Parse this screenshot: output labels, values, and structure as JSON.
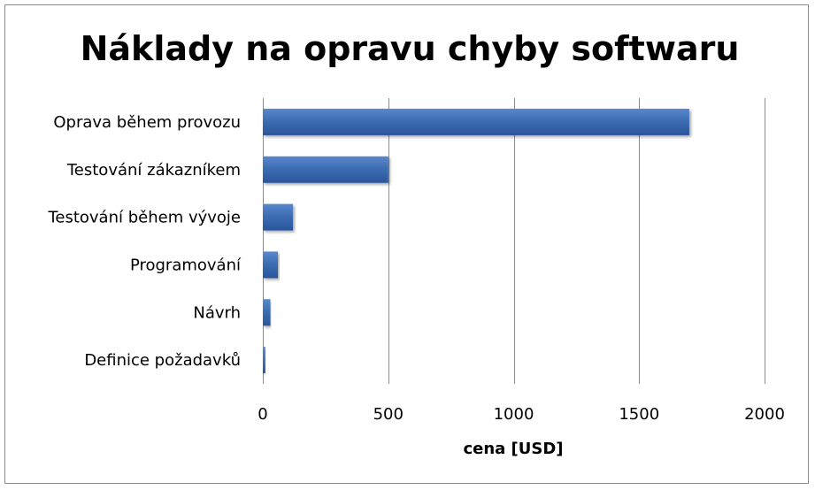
{
  "chart_data": {
    "type": "bar",
    "orientation": "horizontal",
    "title": "Náklady na opravu chyby softwaru",
    "xlabel": "cena [USD]",
    "ylabel": "",
    "categories": [
      "Oprava během provozu",
      "Testování zákazníkem",
      "Testování během vývoje",
      "Programování",
      "Návrh",
      "Definice požadavků"
    ],
    "values": [
      1700,
      500,
      120,
      60,
      30,
      10
    ],
    "xlim": [
      0,
      2000
    ],
    "xticks": [
      0,
      500,
      1000,
      1500,
      2000
    ],
    "xtick_labels": [
      "0",
      "500",
      "1000",
      "1500",
      "2000"
    ],
    "grid": "vertical",
    "legend": "none",
    "bar_color": "#3d6db3",
    "bar_color_light": "#5a88cc",
    "bar_color_dark": "#2a559b",
    "grid_color": "#8c8c8c"
  }
}
